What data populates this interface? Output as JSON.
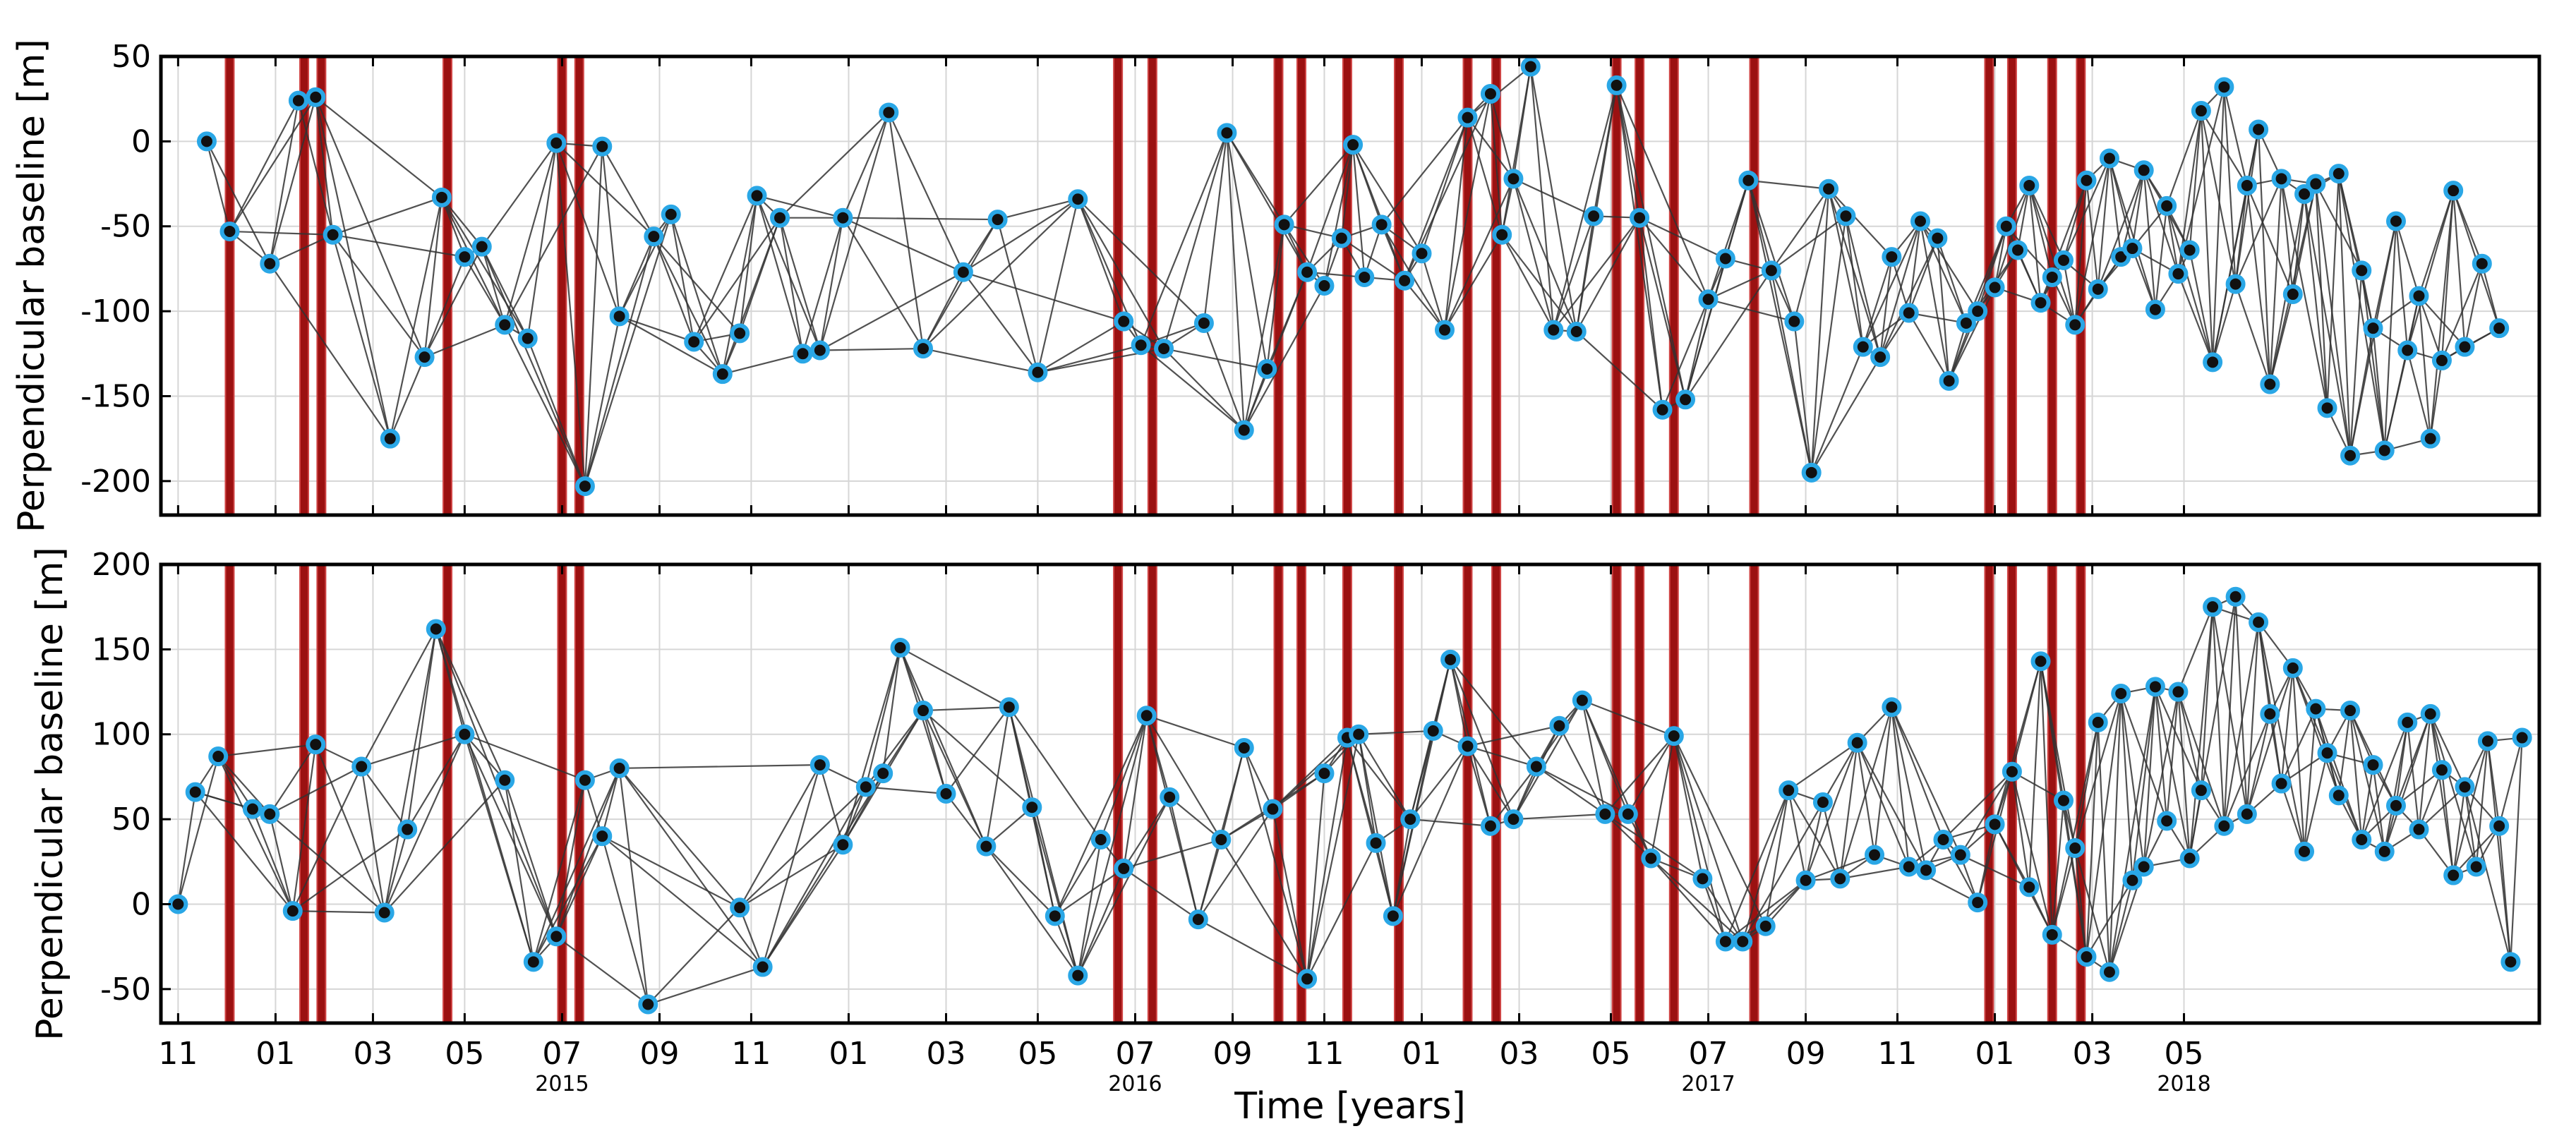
{
  "chart_data": [
    {
      "type": "scatter",
      "panel": "top",
      "ylabel": "Perpendicular baseline [m]",
      "ylim": [
        -220,
        50
      ],
      "yticks": [
        50,
        0,
        -50,
        -100,
        -150,
        -200
      ],
      "connected_pairs": "small-baseline network: each acquisition joined to temporal neighbours",
      "points": [
        {
          "t": 2014.88,
          "y": 0
        },
        {
          "t": 2014.92,
          "y": -53
        },
        {
          "t": 2014.99,
          "y": -72
        },
        {
          "t": 2015.04,
          "y": 24
        },
        {
          "t": 2015.07,
          "y": 26
        },
        {
          "t": 2015.1,
          "y": -55
        },
        {
          "t": 2015.2,
          "y": -175
        },
        {
          "t": 2015.26,
          "y": -127
        },
        {
          "t": 2015.29,
          "y": -33
        },
        {
          "t": 2015.33,
          "y": -68
        },
        {
          "t": 2015.36,
          "y": -62
        },
        {
          "t": 2015.4,
          "y": -108
        },
        {
          "t": 2015.44,
          "y": -116
        },
        {
          "t": 2015.49,
          "y": -1
        },
        {
          "t": 2015.54,
          "y": -203
        },
        {
          "t": 2015.57,
          "y": -3
        },
        {
          "t": 2015.6,
          "y": -103
        },
        {
          "t": 2015.66,
          "y": -56
        },
        {
          "t": 2015.69,
          "y": -43
        },
        {
          "t": 2015.73,
          "y": -118
        },
        {
          "t": 2015.78,
          "y": -137
        },
        {
          "t": 2015.81,
          "y": -113
        },
        {
          "t": 2015.84,
          "y": -32
        },
        {
          "t": 2015.88,
          "y": -45
        },
        {
          "t": 2015.92,
          "y": -125
        },
        {
          "t": 2015.95,
          "y": -123
        },
        {
          "t": 2015.99,
          "y": -45
        },
        {
          "t": 2016.07,
          "y": 17
        },
        {
          "t": 2016.13,
          "y": -122
        },
        {
          "t": 2016.2,
          "y": -77
        },
        {
          "t": 2016.26,
          "y": -46
        },
        {
          "t": 2016.33,
          "y": -136
        },
        {
          "t": 2016.4,
          "y": -34
        },
        {
          "t": 2016.48,
          "y": -106
        },
        {
          "t": 2016.51,
          "y": -120
        },
        {
          "t": 2016.55,
          "y": -122
        },
        {
          "t": 2016.62,
          "y": -107
        },
        {
          "t": 2016.66,
          "y": 5
        },
        {
          "t": 2016.69,
          "y": -170
        },
        {
          "t": 2016.73,
          "y": -134
        },
        {
          "t": 2016.76,
          "y": -49
        },
        {
          "t": 2016.8,
          "y": -77
        },
        {
          "t": 2016.83,
          "y": -85
        },
        {
          "t": 2016.86,
          "y": -57
        },
        {
          "t": 2016.88,
          "y": -2
        },
        {
          "t": 2016.9,
          "y": -80
        },
        {
          "t": 2016.93,
          "y": -49
        },
        {
          "t": 2016.97,
          "y": -82
        },
        {
          "t": 2017.0,
          "y": -66
        },
        {
          "t": 2017.04,
          "y": -111
        },
        {
          "t": 2017.08,
          "y": 14
        },
        {
          "t": 2017.12,
          "y": 28
        },
        {
          "t": 2017.14,
          "y": -55
        },
        {
          "t": 2017.16,
          "y": -22
        },
        {
          "t": 2017.19,
          "y": 44
        },
        {
          "t": 2017.23,
          "y": -111
        },
        {
          "t": 2017.27,
          "y": -112
        },
        {
          "t": 2017.3,
          "y": -44
        },
        {
          "t": 2017.34,
          "y": 33
        },
        {
          "t": 2017.38,
          "y": -45
        },
        {
          "t": 2017.42,
          "y": -158
        },
        {
          "t": 2017.46,
          "y": -152
        },
        {
          "t": 2017.5,
          "y": -93
        },
        {
          "t": 2017.53,
          "y": -69
        },
        {
          "t": 2017.57,
          "y": -23
        },
        {
          "t": 2017.61,
          "y": -76
        },
        {
          "t": 2017.65,
          "y": -106
        },
        {
          "t": 2017.68,
          "y": -195
        },
        {
          "t": 2017.71,
          "y": -28
        },
        {
          "t": 2017.74,
          "y": -44
        },
        {
          "t": 2017.77,
          "y": -121
        },
        {
          "t": 2017.8,
          "y": -127
        },
        {
          "t": 2017.82,
          "y": -68
        },
        {
          "t": 2017.85,
          "y": -101
        },
        {
          "t": 2017.87,
          "y": -47
        },
        {
          "t": 2017.9,
          "y": -57
        },
        {
          "t": 2017.92,
          "y": -141
        },
        {
          "t": 2017.95,
          "y": -107
        },
        {
          "t": 2017.97,
          "y": -100
        },
        {
          "t": 2018.0,
          "y": -86
        },
        {
          "t": 2018.02,
          "y": -50
        },
        {
          "t": 2018.04,
          "y": -64
        },
        {
          "t": 2018.06,
          "y": -26
        },
        {
          "t": 2018.08,
          "y": -95
        },
        {
          "t": 2018.1,
          "y": -80
        },
        {
          "t": 2018.12,
          "y": -70
        },
        {
          "t": 2018.14,
          "y": -108
        },
        {
          "t": 2018.16,
          "y": -23
        },
        {
          "t": 2018.18,
          "y": -87
        },
        {
          "t": 2018.2,
          "y": -10
        },
        {
          "t": 2018.22,
          "y": -68
        },
        {
          "t": 2018.24,
          "y": -63
        },
        {
          "t": 2018.26,
          "y": -17
        },
        {
          "t": 2018.28,
          "y": -99
        },
        {
          "t": 2018.3,
          "y": -38
        },
        {
          "t": 2018.32,
          "y": -78
        },
        {
          "t": 2018.34,
          "y": -64
        },
        {
          "t": 2018.36,
          "y": 18
        },
        {
          "t": 2018.38,
          "y": -130
        },
        {
          "t": 2018.4,
          "y": 32
        },
        {
          "t": 2018.42,
          "y": -84
        },
        {
          "t": 2018.44,
          "y": -26
        },
        {
          "t": 2018.46,
          "y": 7
        },
        {
          "t": 2018.48,
          "y": -143
        },
        {
          "t": 2018.5,
          "y": -22
        },
        {
          "t": 2018.52,
          "y": -90
        },
        {
          "t": 2018.54,
          "y": -31
        },
        {
          "t": 2018.56,
          "y": -25
        },
        {
          "t": 2018.58,
          "y": -157
        },
        {
          "t": 2018.6,
          "y": -19
        },
        {
          "t": 2018.62,
          "y": -185
        },
        {
          "t": 2018.64,
          "y": -76
        },
        {
          "t": 2018.66,
          "y": -110
        },
        {
          "t": 2018.68,
          "y": -182
        },
        {
          "t": 2018.7,
          "y": -47
        },
        {
          "t": 2018.72,
          "y": -123
        },
        {
          "t": 2018.74,
          "y": -91
        },
        {
          "t": 2018.76,
          "y": -175
        },
        {
          "t": 2018.78,
          "y": -129
        },
        {
          "t": 2018.8,
          "y": -29
        },
        {
          "t": 2018.82,
          "y": -121
        },
        {
          "t": 2018.85,
          "y": -72
        },
        {
          "t": 2018.88,
          "y": -110
        }
      ]
    },
    {
      "type": "scatter",
      "panel": "bottom",
      "ylabel": "Perpendicular baseline [m]",
      "xlabel": "Time [years]",
      "ylim": [
        -70,
        200
      ],
      "yticks": [
        200,
        150,
        100,
        50,
        0,
        -50
      ],
      "connected_pairs": "small-baseline network: each acquisition joined to temporal neighbours",
      "points": [
        {
          "t": 2014.83,
          "y": 0
        },
        {
          "t": 2014.86,
          "y": 66
        },
        {
          "t": 2014.9,
          "y": 87
        },
        {
          "t": 2014.96,
          "y": 56
        },
        {
          "t": 2014.99,
          "y": 53
        },
        {
          "t": 2015.03,
          "y": -4
        },
        {
          "t": 2015.07,
          "y": 94
        },
        {
          "t": 2015.15,
          "y": 81
        },
        {
          "t": 2015.19,
          "y": -5
        },
        {
          "t": 2015.23,
          "y": 44
        },
        {
          "t": 2015.28,
          "y": 162
        },
        {
          "t": 2015.33,
          "y": 100
        },
        {
          "t": 2015.4,
          "y": 73
        },
        {
          "t": 2015.45,
          "y": -34
        },
        {
          "t": 2015.49,
          "y": -19
        },
        {
          "t": 2015.54,
          "y": 73
        },
        {
          "t": 2015.57,
          "y": 40
        },
        {
          "t": 2015.6,
          "y": 80
        },
        {
          "t": 2015.65,
          "y": -59
        },
        {
          "t": 2015.81,
          "y": -2
        },
        {
          "t": 2015.85,
          "y": -37
        },
        {
          "t": 2015.95,
          "y": 82
        },
        {
          "t": 2015.99,
          "y": 35
        },
        {
          "t": 2016.03,
          "y": 69
        },
        {
          "t": 2016.06,
          "y": 77
        },
        {
          "t": 2016.09,
          "y": 151
        },
        {
          "t": 2016.13,
          "y": 114
        },
        {
          "t": 2016.17,
          "y": 65
        },
        {
          "t": 2016.24,
          "y": 34
        },
        {
          "t": 2016.28,
          "y": 116
        },
        {
          "t": 2016.32,
          "y": 57
        },
        {
          "t": 2016.36,
          "y": -7
        },
        {
          "t": 2016.4,
          "y": -42
        },
        {
          "t": 2016.44,
          "y": 38
        },
        {
          "t": 2016.48,
          "y": 21
        },
        {
          "t": 2016.52,
          "y": 111
        },
        {
          "t": 2016.56,
          "y": 63
        },
        {
          "t": 2016.61,
          "y": -9
        },
        {
          "t": 2016.65,
          "y": 38
        },
        {
          "t": 2016.69,
          "y": 92
        },
        {
          "t": 2016.74,
          "y": 56
        },
        {
          "t": 2016.8,
          "y": -44
        },
        {
          "t": 2016.83,
          "y": 77
        },
        {
          "t": 2016.87,
          "y": 98
        },
        {
          "t": 2016.89,
          "y": 100
        },
        {
          "t": 2016.92,
          "y": 36
        },
        {
          "t": 2016.95,
          "y": -7
        },
        {
          "t": 2016.98,
          "y": 50
        },
        {
          "t": 2017.02,
          "y": 102
        },
        {
          "t": 2017.05,
          "y": 144
        },
        {
          "t": 2017.08,
          "y": 93
        },
        {
          "t": 2017.12,
          "y": 46
        },
        {
          "t": 2017.16,
          "y": 50
        },
        {
          "t": 2017.2,
          "y": 81
        },
        {
          "t": 2017.24,
          "y": 105
        },
        {
          "t": 2017.28,
          "y": 120
        },
        {
          "t": 2017.32,
          "y": 53
        },
        {
          "t": 2017.36,
          "y": 53
        },
        {
          "t": 2017.4,
          "y": 27
        },
        {
          "t": 2017.44,
          "y": 99
        },
        {
          "t": 2017.49,
          "y": 15
        },
        {
          "t": 2017.53,
          "y": -22
        },
        {
          "t": 2017.56,
          "y": -22
        },
        {
          "t": 2017.6,
          "y": -13
        },
        {
          "t": 2017.64,
          "y": 67
        },
        {
          "t": 2017.67,
          "y": 14
        },
        {
          "t": 2017.7,
          "y": 60
        },
        {
          "t": 2017.73,
          "y": 15
        },
        {
          "t": 2017.76,
          "y": 95
        },
        {
          "t": 2017.79,
          "y": 29
        },
        {
          "t": 2017.82,
          "y": 116
        },
        {
          "t": 2017.85,
          "y": 22
        },
        {
          "t": 2017.88,
          "y": 20
        },
        {
          "t": 2017.91,
          "y": 38
        },
        {
          "t": 2017.94,
          "y": 29
        },
        {
          "t": 2017.97,
          "y": 1
        },
        {
          "t": 2018.0,
          "y": 47
        },
        {
          "t": 2018.03,
          "y": 78
        },
        {
          "t": 2018.06,
          "y": 10
        },
        {
          "t": 2018.08,
          "y": 143
        },
        {
          "t": 2018.1,
          "y": -18
        },
        {
          "t": 2018.12,
          "y": 61
        },
        {
          "t": 2018.14,
          "y": 33
        },
        {
          "t": 2018.16,
          "y": -31
        },
        {
          "t": 2018.18,
          "y": 107
        },
        {
          "t": 2018.2,
          "y": -40
        },
        {
          "t": 2018.22,
          "y": 124
        },
        {
          "t": 2018.24,
          "y": 14
        },
        {
          "t": 2018.26,
          "y": 22
        },
        {
          "t": 2018.28,
          "y": 128
        },
        {
          "t": 2018.3,
          "y": 49
        },
        {
          "t": 2018.32,
          "y": 125
        },
        {
          "t": 2018.34,
          "y": 27
        },
        {
          "t": 2018.36,
          "y": 67
        },
        {
          "t": 2018.38,
          "y": 175
        },
        {
          "t": 2018.4,
          "y": 46
        },
        {
          "t": 2018.42,
          "y": 181
        },
        {
          "t": 2018.44,
          "y": 53
        },
        {
          "t": 2018.46,
          "y": 166
        },
        {
          "t": 2018.48,
          "y": 112
        },
        {
          "t": 2018.5,
          "y": 71
        },
        {
          "t": 2018.52,
          "y": 139
        },
        {
          "t": 2018.54,
          "y": 31
        },
        {
          "t": 2018.56,
          "y": 115
        },
        {
          "t": 2018.58,
          "y": 89
        },
        {
          "t": 2018.6,
          "y": 64
        },
        {
          "t": 2018.62,
          "y": 114
        },
        {
          "t": 2018.64,
          "y": 38
        },
        {
          "t": 2018.66,
          "y": 82
        },
        {
          "t": 2018.68,
          "y": 31
        },
        {
          "t": 2018.7,
          "y": 58
        },
        {
          "t": 2018.72,
          "y": 107
        },
        {
          "t": 2018.74,
          "y": 44
        },
        {
          "t": 2018.76,
          "y": 112
        },
        {
          "t": 2018.78,
          "y": 79
        },
        {
          "t": 2018.8,
          "y": 17
        },
        {
          "t": 2018.82,
          "y": 69
        },
        {
          "t": 2018.84,
          "y": 22
        },
        {
          "t": 2018.86,
          "y": 96
        },
        {
          "t": 2018.88,
          "y": 46
        },
        {
          "t": 2018.9,
          "y": -34
        },
        {
          "t": 2018.92,
          "y": 98
        }
      ]
    }
  ],
  "shared_axis": {
    "xlabel": "Time [years]",
    "xlim": [
      2014.8,
      2018.95
    ],
    "month_ticks": [
      {
        "t": 2014.83,
        "label": "11"
      },
      {
        "t": 2015.0,
        "label": "01"
      },
      {
        "t": 2015.17,
        "label": "03"
      },
      {
        "t": 2015.33,
        "label": "05"
      },
      {
        "t": 2015.5,
        "label": "07"
      },
      {
        "t": 2015.67,
        "label": "09"
      },
      {
        "t": 2015.83,
        "label": "11"
      },
      {
        "t": 2016.0,
        "label": "01"
      },
      {
        "t": 2016.17,
        "label": "03"
      },
      {
        "t": 2016.33,
        "label": "05"
      },
      {
        "t": 2016.5,
        "label": "07"
      },
      {
        "t": 2016.67,
        "label": "09"
      },
      {
        "t": 2016.83,
        "label": "11"
      },
      {
        "t": 2017.0,
        "label": "01"
      },
      {
        "t": 2017.17,
        "label": "03"
      },
      {
        "t": 2017.33,
        "label": "05"
      },
      {
        "t": 2017.5,
        "label": "07"
      },
      {
        "t": 2017.67,
        "label": "09"
      },
      {
        "t": 2017.83,
        "label": "11"
      },
      {
        "t": 2018.0,
        "label": "01"
      },
      {
        "t": 2018.17,
        "label": "03"
      },
      {
        "t": 2018.33,
        "label": "05"
      }
    ],
    "year_labels": [
      {
        "t": 2015.5,
        "label": "2015"
      },
      {
        "t": 2016.5,
        "label": "2016"
      },
      {
        "t": 2017.5,
        "label": "2017"
      },
      {
        "t": 2018.33,
        "label": "2018"
      }
    ],
    "event_times": [
      2014.92,
      2015.05,
      2015.08,
      2015.3,
      2015.5,
      2015.53,
      2016.47,
      2016.53,
      2016.75,
      2016.79,
      2016.87,
      2016.96,
      2017.08,
      2017.13,
      2017.34,
      2017.38,
      2017.44,
      2017.58,
      2017.99,
      2018.03,
      2018.1,
      2018.15
    ]
  },
  "colors": {
    "event_bar": "#9b1111",
    "point_fill": "#111111",
    "point_edge": "#2aa7e6",
    "edge_line": "#333333"
  }
}
